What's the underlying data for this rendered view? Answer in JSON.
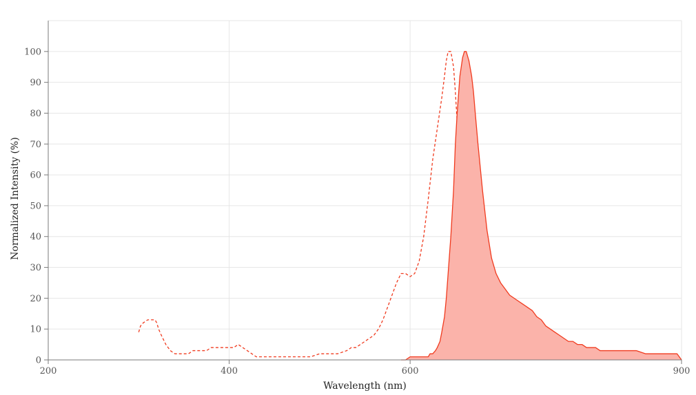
{
  "chart_data": {
    "type": "area",
    "title": "",
    "xlabel": "Wavelength (nm)",
    "ylabel": "Normalized Intensity (%)",
    "xlim": [
      200,
      900
    ],
    "ylim": [
      0,
      110
    ],
    "x_ticks": [
      200,
      400,
      600,
      900
    ],
    "y_ticks": [
      0,
      10,
      20,
      30,
      40,
      50,
      60,
      70,
      80,
      90,
      100
    ],
    "grid": true,
    "series": [
      {
        "style": "dashed",
        "fill": false,
        "color": "#f03a1e",
        "x": [
          300,
          302,
          305,
          310,
          315,
          318,
          320,
          322,
          325,
          330,
          335,
          340,
          345,
          350,
          355,
          360,
          365,
          370,
          375,
          380,
          385,
          390,
          395,
          400,
          405,
          410,
          415,
          420,
          425,
          430,
          435,
          440,
          445,
          450,
          460,
          470,
          480,
          490,
          500,
          510,
          520,
          530,
          535,
          540,
          545,
          550,
          555,
          560,
          565,
          570,
          575,
          580,
          585,
          590,
          595,
          600,
          605,
          610,
          615,
          620,
          625,
          630,
          635,
          638,
          640,
          642,
          645,
          648,
          650,
          652,
          655,
          658,
          660,
          662,
          665,
          668,
          670,
          675,
          680,
          685,
          690,
          695
        ],
        "y": [
          9,
          11,
          12,
          13,
          13,
          13,
          12,
          10,
          8,
          5,
          3,
          2,
          2,
          2,
          2,
          3,
          3,
          3,
          3,
          4,
          4,
          4,
          4,
          4,
          4,
          5,
          4,
          3,
          2,
          1,
          1,
          1,
          1,
          1,
          1,
          1,
          1,
          1,
          2,
          2,
          2,
          3,
          4,
          4,
          5,
          6,
          7,
          8,
          10,
          13,
          17,
          21,
          25,
          28,
          28,
          27,
          28,
          32,
          40,
          52,
          65,
          75,
          85,
          92,
          97,
          100,
          100,
          95,
          87,
          77,
          60,
          45,
          33,
          25,
          17,
          11,
          7,
          3,
          1.5,
          1,
          0.5,
          0
        ]
      },
      {
        "style": "solid",
        "fill": true,
        "color": "#f03a1e",
        "fill_color": "#fbb3aa",
        "x": [
          590,
          595,
          600,
          605,
          610,
          615,
          620,
          622,
          625,
          628,
          630,
          633,
          635,
          638,
          640,
          642,
          645,
          648,
          650,
          652,
          655,
          658,
          660,
          662,
          665,
          668,
          670,
          672,
          675,
          680,
          685,
          690,
          695,
          700,
          705,
          710,
          715,
          720,
          725,
          730,
          735,
          740,
          745,
          750,
          755,
          760,
          765,
          770,
          775,
          780,
          785,
          790,
          795,
          800,
          805,
          810,
          820,
          830,
          840,
          850,
          860,
          870,
          880,
          890,
          895,
          900
        ],
        "y": [
          0,
          0,
          1,
          1,
          1,
          1,
          1,
          2,
          2,
          3,
          4,
          6,
          9,
          14,
          20,
          28,
          40,
          55,
          70,
          80,
          92,
          98,
          100,
          100,
          97,
          92,
          87,
          80,
          70,
          55,
          42,
          33,
          28,
          25,
          23,
          21,
          20,
          19,
          18,
          17,
          16,
          14,
          13,
          11,
          10,
          9,
          8,
          7,
          6,
          6,
          5,
          5,
          4,
          4,
          4,
          3,
          3,
          3,
          3,
          3,
          2,
          2,
          2,
          2,
          2,
          0
        ]
      }
    ]
  }
}
